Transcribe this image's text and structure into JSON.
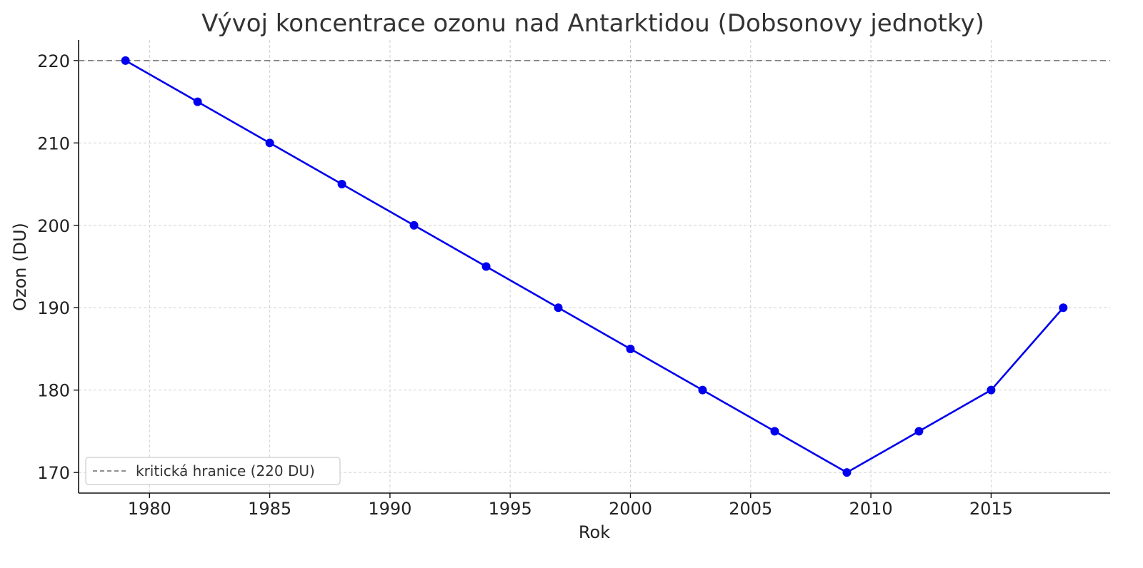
{
  "chart_data": {
    "type": "line",
    "title": "Vývoj koncentrace ozonu nad Antarktidou (Dobsonovy jednotky)",
    "xlabel": "Rok",
    "ylabel": "Ozon (DU)",
    "xlim": [
      1977.05,
      2019.95
    ],
    "ylim": [
      167.5,
      222.5
    ],
    "xticks": [
      1980,
      1985,
      1990,
      1995,
      2000,
      2005,
      2010,
      2015
    ],
    "yticks": [
      170,
      180,
      190,
      200,
      210,
      220
    ],
    "grid": true,
    "legend_position": "lower-left",
    "series": [
      {
        "color": "#0000ee",
        "marker": "circle",
        "x": [
          1979,
          1982,
          1985,
          1988,
          1991,
          1994,
          1997,
          2000,
          2003,
          2006,
          2009,
          2012,
          2015,
          2018
        ],
        "y": [
          220,
          215,
          210,
          205,
          200,
          195,
          190,
          185,
          180,
          175,
          170,
          175,
          180,
          190
        ]
      }
    ],
    "reference_lines": [
      {
        "name": "kritická hranice (220 DU)",
        "y": 220,
        "style": "dashed",
        "color": "#808080"
      }
    ]
  }
}
